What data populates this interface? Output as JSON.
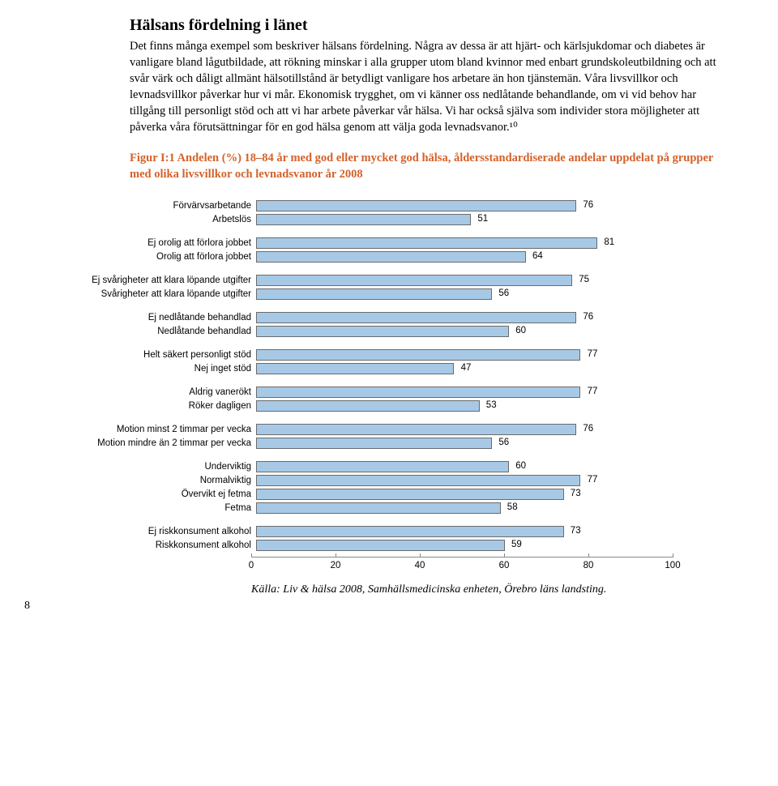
{
  "heading": "Hälsans fördelning i länet",
  "body": "Det finns många exempel som beskriver hälsans fördelning. Några av dessa är att hjärt- och kärlsjukdomar och diabetes är vanligare bland lågutbildade, att rökning minskar i alla grupper utom bland kvinnor med enbart grundskoleutbildning och att svår värk och dåligt allmänt hälsotillstånd är betydligt vanligare hos arbetare än hon tjänstemän. Våra livsvillkor och levnadsvillkor påverkar hur vi mår. Ekonomisk trygghet, om vi känner oss nedlåtande behandlande, om vi vid behov har tillgång till personligt stöd och att vi har arbete påverkar vår hälsa. Vi har också själva som individer stora möjligheter att påverka våra förutsättningar för en god hälsa genom att välja goda levnadsvanor.¹⁰",
  "figure_caption": "Figur I:1 Andelen (%) 18–84 år med god eller mycket god hälsa, åldersstandardiserade andelar uppdelat på grupper med olika livsvillkor och levnadsvanor år 2008",
  "chart": {
    "type": "bar",
    "xlim": [
      0,
      100
    ],
    "xticks": [
      0,
      20,
      40,
      60,
      80,
      100
    ],
    "bar_color": "#a7c9e6",
    "bar_border": "#6b6b6b",
    "groups": [
      [
        {
          "label": "Förvärvsarbetande",
          "value": 76
        },
        {
          "label": "Arbetslös",
          "value": 51
        }
      ],
      [
        {
          "label": "Ej orolig att förlora jobbet",
          "value": 81
        },
        {
          "label": "Orolig att förlora jobbet",
          "value": 64
        }
      ],
      [
        {
          "label": "Ej svårigheter att klara löpande utgifter",
          "value": 75
        },
        {
          "label": "Svårigheter att klara löpande utgifter",
          "value": 56
        }
      ],
      [
        {
          "label": "Ej nedlåtande behandlad",
          "value": 76
        },
        {
          "label": "Nedlåtande behandlad",
          "value": 60
        }
      ],
      [
        {
          "label": "Helt säkert personligt stöd",
          "value": 77
        },
        {
          "label": "Nej inget stöd",
          "value": 47
        }
      ],
      [
        {
          "label": "Aldrig vanerökt",
          "value": 77
        },
        {
          "label": "Röker dagligen",
          "value": 53
        }
      ],
      [
        {
          "label": "Motion minst 2 timmar per vecka",
          "value": 76
        },
        {
          "label": "Motion mindre än 2 timmar per vecka",
          "value": 56
        }
      ],
      [
        {
          "label": "Underviktig",
          "value": 60
        },
        {
          "label": "Normalviktig",
          "value": 77
        },
        {
          "label": "Övervikt ej fetma",
          "value": 73
        },
        {
          "label": "Fetma",
          "value": 58
        }
      ],
      [
        {
          "label": "Ej riskkonsument alkohol",
          "value": 73
        },
        {
          "label": "Riskkonsument alkohol",
          "value": 59
        }
      ]
    ]
  },
  "source": "Källa: Liv & hälsa 2008, Samhällsmedicinska enheten, Örebro läns landsting.",
  "page_number": "8"
}
